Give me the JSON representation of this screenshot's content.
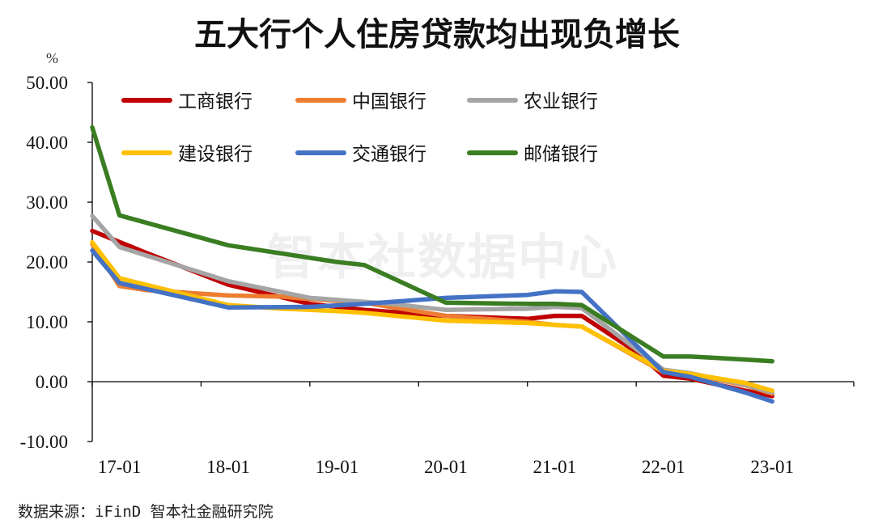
{
  "chart_data": {
    "type": "line",
    "title": "五大行个人住房贷款均出现负增长",
    "ylabel": "%",
    "ylim": [
      -10,
      50
    ],
    "yticks": [
      "-10.00",
      "0.00",
      "10.00",
      "20.00",
      "30.00",
      "40.00",
      "50.00"
    ],
    "ytick_values": [
      -10,
      0,
      10,
      20,
      30,
      40,
      50
    ],
    "x_labels": [
      "17-01",
      "18-01",
      "19-01",
      "20-01",
      "21-01",
      "22-01",
      "23-01"
    ],
    "x_range": [
      2016.75,
      2023.75
    ],
    "grid": false,
    "legend_position": "top",
    "series": [
      {
        "name": "工商银行",
        "color": "#C00000",
        "x": [
          2016.75,
          2017.25,
          2018.0,
          2018.75,
          2019.25,
          2020.0,
          2020.75,
          2021.0,
          2021.25,
          2021.75,
          2022.0,
          2022.25,
          2022.75,
          2023.0
        ],
        "y": [
          25.2,
          21.5,
          16.2,
          13.0,
          12.0,
          11.0,
          10.5,
          11.0,
          11.0,
          5.0,
          1.0,
          0.5,
          -1.5,
          -2.4
        ]
      },
      {
        "name": "中国银行",
        "color": "#ED7D31",
        "x": [
          2016.75,
          2017.0,
          2017.25,
          2018.0,
          2018.5,
          2018.75,
          2019.25,
          2020.0,
          2020.75,
          2021.0,
          2021.25,
          2022.0,
          2022.25,
          2022.75,
          2023.0
        ],
        "y": [
          23.0,
          16.0,
          15.3,
          14.4,
          14.2,
          13.8,
          13.2,
          11.0,
          10.0,
          9.5,
          9.2,
          1.6,
          1.2,
          -0.6,
          -2.0
        ]
      },
      {
        "name": "农业银行",
        "color": "#A5A5A5",
        "x": [
          2016.75,
          2017.0,
          2018.0,
          2018.75,
          2019.5,
          2020.0,
          2020.75,
          2021.0,
          2021.25,
          2022.0,
          2022.25,
          2022.75,
          2023.0
        ],
        "y": [
          27.7,
          22.5,
          16.8,
          14.0,
          13.0,
          12.0,
          12.2,
          12.5,
          12.3,
          2.0,
          1.4,
          -0.5,
          -1.8
        ]
      },
      {
        "name": "建设银行",
        "color": "#FFC000",
        "x": [
          2016.75,
          2017.0,
          2018.0,
          2018.5,
          2019.0,
          2019.25,
          2020.0,
          2020.75,
          2021.0,
          2021.25,
          2022.0,
          2022.25,
          2022.75,
          2023.0
        ],
        "y": [
          23.3,
          17.3,
          12.8,
          12.2,
          11.8,
          11.5,
          10.2,
          9.8,
          9.5,
          9.2,
          1.8,
          1.3,
          -0.2,
          -1.5
        ]
      },
      {
        "name": "交通银行",
        "color": "#4472C4",
        "x": [
          2016.75,
          2017.0,
          2018.0,
          2018.75,
          2019.25,
          2020.0,
          2020.75,
          2021.0,
          2021.25,
          2022.0,
          2022.25,
          2022.75,
          2023.0
        ],
        "y": [
          21.9,
          16.5,
          12.4,
          12.5,
          13.0,
          14.0,
          14.5,
          15.1,
          15.0,
          1.6,
          0.8,
          -1.8,
          -3.3
        ]
      },
      {
        "name": "邮储银行",
        "color": "#3A7D22",
        "x": [
          2016.75,
          2017.0,
          2018.0,
          2019.0,
          2019.25,
          2020.0,
          2020.75,
          2021.0,
          2021.25,
          2022.0,
          2022.25,
          2022.75,
          2023.0
        ],
        "y": [
          42.5,
          27.8,
          22.8,
          20.0,
          19.5,
          13.2,
          13.0,
          13.0,
          12.8,
          4.2,
          4.2,
          3.7,
          3.4
        ]
      }
    ]
  },
  "watermark": "智本社数据中心",
  "source": "数据来源：iFinD 智本社金融研究院"
}
